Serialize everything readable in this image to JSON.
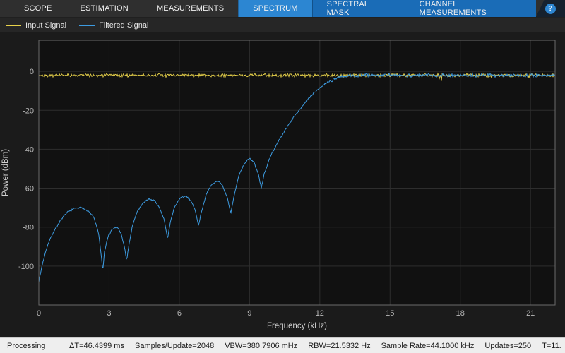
{
  "toolbar": {
    "tabs": [
      {
        "label": "SCOPE",
        "group": "dark",
        "active": false
      },
      {
        "label": "ESTIMATION",
        "group": "dark",
        "active": false
      },
      {
        "label": "MEASUREMENTS",
        "group": "dark",
        "active": false
      },
      {
        "label": "SPECTRUM",
        "group": "blue",
        "active": true
      },
      {
        "label": "SPECTRAL MASK",
        "group": "blue",
        "active": false
      },
      {
        "label": "CHANNEL MEASUREMENTS",
        "group": "blue",
        "active": false
      }
    ],
    "help_icon": "?"
  },
  "legend": {
    "items": [
      {
        "label": "Input Signal",
        "color": "#e8d24a"
      },
      {
        "label": "Filtered Signal",
        "color": "#3d9be0"
      }
    ]
  },
  "chart_data": {
    "type": "line",
    "title": "",
    "xlabel": "Frequency (kHz)",
    "ylabel": "Power (dBm)",
    "xlim": [
      0,
      22.05
    ],
    "ylim": [
      -120,
      16
    ],
    "xticks": [
      0,
      3,
      6,
      9,
      12,
      15,
      18,
      21
    ],
    "yticks": [
      0,
      -20,
      -40,
      -60,
      -80,
      -100
    ],
    "grid": true,
    "legend_position": "top-left",
    "series": [
      {
        "name": "Input Signal",
        "color": "#e8d24a",
        "style": "noisy-flat",
        "level_dbm": -2,
        "noise_db": 1.0
      },
      {
        "name": "Filtered Signal",
        "color": "#3d9be0",
        "style": "anchor-line",
        "noise_db_stopband": 0.5,
        "noise_db_passband": 1.1,
        "passband_start_khz": 12.3,
        "points": [
          [
            0,
            -108
          ],
          [
            0.15,
            -99
          ],
          [
            0.35,
            -90
          ],
          [
            0.6,
            -83
          ],
          [
            0.9,
            -77
          ],
          [
            1.2,
            -72.5
          ],
          [
            1.5,
            -70.5
          ],
          [
            1.8,
            -70
          ],
          [
            2.1,
            -71.5
          ],
          [
            2.35,
            -75
          ],
          [
            2.55,
            -83
          ],
          [
            2.68,
            -96
          ],
          [
            2.73,
            -103
          ],
          [
            2.8,
            -93
          ],
          [
            2.95,
            -85
          ],
          [
            3.15,
            -81
          ],
          [
            3.35,
            -80
          ],
          [
            3.5,
            -83
          ],
          [
            3.65,
            -90
          ],
          [
            3.75,
            -97
          ],
          [
            3.85,
            -89
          ],
          [
            4.0,
            -79
          ],
          [
            4.2,
            -72
          ],
          [
            4.45,
            -67.5
          ],
          [
            4.7,
            -65.5
          ],
          [
            4.95,
            -66.5
          ],
          [
            5.15,
            -70
          ],
          [
            5.35,
            -76
          ],
          [
            5.5,
            -86
          ],
          [
            5.62,
            -77
          ],
          [
            5.8,
            -69.5
          ],
          [
            6.05,
            -65
          ],
          [
            6.3,
            -64
          ],
          [
            6.5,
            -66.5
          ],
          [
            6.67,
            -71
          ],
          [
            6.82,
            -79
          ],
          [
            6.95,
            -72
          ],
          [
            7.15,
            -63
          ],
          [
            7.4,
            -58
          ],
          [
            7.65,
            -56
          ],
          [
            7.85,
            -59
          ],
          [
            8.05,
            -65
          ],
          [
            8.2,
            -73
          ],
          [
            8.32,
            -65
          ],
          [
            8.55,
            -53
          ],
          [
            8.8,
            -47
          ],
          [
            9.0,
            -44.5
          ],
          [
            9.2,
            -47
          ],
          [
            9.38,
            -53
          ],
          [
            9.5,
            -60
          ],
          [
            9.62,
            -53
          ],
          [
            9.8,
            -46.5
          ],
          [
            10.0,
            -41
          ],
          [
            10.25,
            -35.5
          ],
          [
            10.5,
            -30.5
          ],
          [
            10.8,
            -25
          ],
          [
            11.1,
            -20
          ],
          [
            11.45,
            -15
          ],
          [
            11.8,
            -10.5
          ],
          [
            12.15,
            -7
          ],
          [
            12.5,
            -4.5
          ],
          [
            12.9,
            -3
          ],
          [
            13.3,
            -2.3
          ],
          [
            13.8,
            -2
          ],
          [
            22.05,
            -2
          ]
        ]
      }
    ]
  },
  "status_bar": {
    "state": "Processing",
    "stats": [
      "ΔT=46.4399 ms",
      "Samples/Update=2048",
      "VBW=380.7906 mHz",
      "RBW=21.5332 Hz",
      "Sample Rate=44.1000 kHz",
      "Updates=250",
      "T=11."
    ]
  },
  "colors": {
    "toolbar_bg": "#2f2f2f",
    "tab_blue": "#1a6cb7",
    "tab_blue_active": "#2c86d2",
    "plot_bg": "#111111",
    "grid": "#2e2e2e",
    "axes_border": "#6b6b6b",
    "tick_text": "#b9b9b9",
    "status_bg": "#eeeeee"
  }
}
